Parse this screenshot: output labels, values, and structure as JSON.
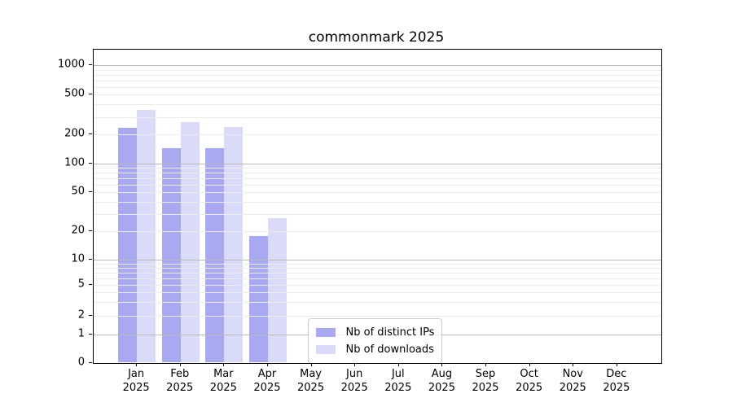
{
  "chart_data": {
    "type": "bar",
    "title": "commonmark 2025",
    "categories": [
      "Jan",
      "Feb",
      "Mar",
      "Apr",
      "May",
      "Jun",
      "Jul",
      "Aug",
      "Sep",
      "Oct",
      "Nov",
      "Dec"
    ],
    "category_year": "2025",
    "series": [
      {
        "name": "Nb of distinct IPs",
        "color": "#a9a9f1",
        "values": [
          235,
          145,
          146,
          18,
          null,
          null,
          null,
          null,
          null,
          null,
          null,
          null
        ]
      },
      {
        "name": "Nb of downloads",
        "color": "#dadaf9",
        "values": [
          352,
          265,
          240,
          27,
          null,
          null,
          null,
          null,
          null,
          null,
          null,
          null
        ]
      }
    ],
    "y_axis": {
      "scale": "log with zero baseline",
      "tick_values": [
        0,
        1,
        2,
        5,
        10,
        20,
        50,
        100,
        200,
        500,
        1000
      ],
      "tick_labels": [
        "0",
        "1",
        "2",
        "5",
        "10",
        "20",
        "50",
        "100",
        "200",
        "500",
        "1000"
      ],
      "top_value": 1400
    },
    "x_axis": {
      "tick_count": 12
    },
    "legend": {
      "position": "lower center",
      "frame": true
    },
    "grid": {
      "major_at": [
        1,
        10,
        100,
        1000
      ],
      "minor_at": "2-9 per decade"
    }
  },
  "colors": {
    "background": "#ffffff",
    "axis": "#000000",
    "text": "#000000",
    "major_grid": "#b9b9b9",
    "minor_grid": "#ececec",
    "legend_border": "#cccccc",
    "series_distinct_ips": "#a9a9f1",
    "series_downloads": "#dadaf9"
  }
}
